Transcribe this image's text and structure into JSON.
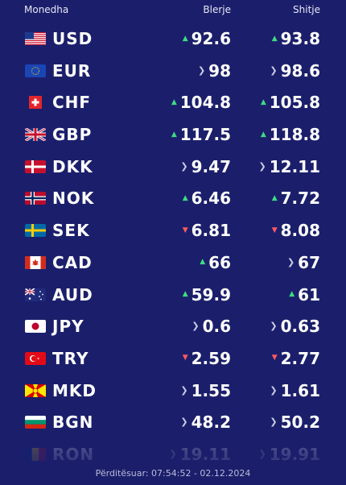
{
  "header": {
    "name": "Monedha",
    "buy": "Blerje",
    "sell": "Shitje"
  },
  "colors": {
    "background": "#1b1f6b",
    "up": "#3ddc84",
    "down": "#ff5a5f",
    "flat": "#c9cce6"
  },
  "rows": [
    {
      "code": "USD",
      "flag": "us-flag-icon",
      "buy": "92.6",
      "buy_trend": "up",
      "sell": "93.8",
      "sell_trend": "up"
    },
    {
      "code": "EUR",
      "flag": "eu-flag-icon",
      "buy": "98",
      "buy_trend": "flat",
      "sell": "98.6",
      "sell_trend": "flat"
    },
    {
      "code": "CHF",
      "flag": "ch-flag-icon",
      "buy": "104.8",
      "buy_trend": "up",
      "sell": "105.8",
      "sell_trend": "up"
    },
    {
      "code": "GBP",
      "flag": "gb-flag-icon",
      "buy": "117.5",
      "buy_trend": "up",
      "sell": "118.8",
      "sell_trend": "up"
    },
    {
      "code": "DKK",
      "flag": "dk-flag-icon",
      "buy": "9.47",
      "buy_trend": "flat",
      "sell": "12.11",
      "sell_trend": "flat"
    },
    {
      "code": "NOK",
      "flag": "no-flag-icon",
      "buy": "6.46",
      "buy_trend": "up",
      "sell": "7.72",
      "sell_trend": "up"
    },
    {
      "code": "SEK",
      "flag": "se-flag-icon",
      "buy": "6.81",
      "buy_trend": "down",
      "sell": "8.08",
      "sell_trend": "down"
    },
    {
      "code": "CAD",
      "flag": "ca-flag-icon",
      "buy": "66",
      "buy_trend": "up",
      "sell": "67",
      "sell_trend": "flat"
    },
    {
      "code": "AUD",
      "flag": "au-flag-icon",
      "buy": "59.9",
      "buy_trend": "up",
      "sell": "61",
      "sell_trend": "up"
    },
    {
      "code": "JPY",
      "flag": "jp-flag-icon",
      "buy": "0.6",
      "buy_trend": "flat",
      "sell": "0.63",
      "sell_trend": "flat"
    },
    {
      "code": "TRY",
      "flag": "tr-flag-icon",
      "buy": "2.59",
      "buy_trend": "down",
      "sell": "2.77",
      "sell_trend": "down"
    },
    {
      "code": "MKD",
      "flag": "mk-flag-icon",
      "buy": "1.55",
      "buy_trend": "flat",
      "sell": "1.61",
      "sell_trend": "flat"
    },
    {
      "code": "BGN",
      "flag": "bg-flag-icon",
      "buy": "48.2",
      "buy_trend": "flat",
      "sell": "50.2",
      "sell_trend": "flat"
    },
    {
      "code": "RON",
      "flag": "ro-flag-icon",
      "buy": "19.11",
      "buy_trend": "flat",
      "sell": "19.91",
      "sell_trend": "flat"
    }
  ],
  "footer": "Përditësuar: 07:54:52 - 02.12.2024"
}
